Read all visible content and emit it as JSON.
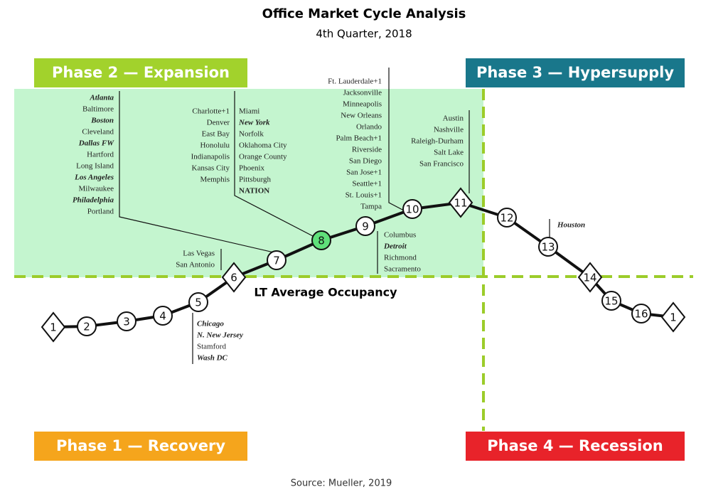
{
  "header": {
    "title": "Office Market Cycle Analysis",
    "subtitle": "4th Quarter, 2018"
  },
  "phases": [
    "Phase 2 — Expansion",
    "Phase 3 — Hypersupply",
    "Phase 1 — Recovery",
    "Phase 4 — Recession"
  ],
  "nodes": [
    "1",
    "2",
    "3",
    "4",
    "5",
    "6",
    "7",
    "8",
    "9",
    "10",
    "11",
    "12",
    "13",
    "14",
    "15",
    "16",
    "1"
  ],
  "city_groups": [
    [
      "Atlanta",
      "Baltimore",
      "Boston",
      "Cleveland",
      "Dallas FW",
      "Hartford",
      "Long Island",
      "Los Angeles",
      "Milwaukee",
      "Philadelphia",
      "Portland"
    ],
    [
      "Charlotte+1",
      "Denver",
      "East Bay",
      "Honolulu",
      "Indianapolis",
      "Kansas City",
      "Memphis"
    ],
    [
      "Miami",
      "New York",
      "Norfolk",
      "Oklahoma City",
      "Orange County",
      "Phoenix",
      "Pittsburgh",
      "NATION"
    ],
    [
      "Ft. Lauderdale+1",
      "Jacksonville",
      "Minneapolis",
      "New Orleans",
      "Orlando",
      "Palm Beach+1",
      "Riverside",
      "San Diego",
      "San Jose+1",
      "Seattle+1",
      "St. Louis+1",
      "Tampa"
    ],
    [
      "Austin",
      "Nashville",
      "Raleigh-Durham",
      "Salt Lake",
      "San Francisco"
    ],
    [
      "Columbus",
      "Detroit",
      "Richmond",
      "Sacramento"
    ],
    [
      "Las Vegas",
      "San Antonio"
    ],
    [
      "Houston"
    ],
    [
      "Chicago",
      "N. New Jersey",
      "Stamford",
      "Wash DC"
    ]
  ],
  "annotation": "LT Average Occupancy",
  "source": "Source: Mueller, 2019"
}
